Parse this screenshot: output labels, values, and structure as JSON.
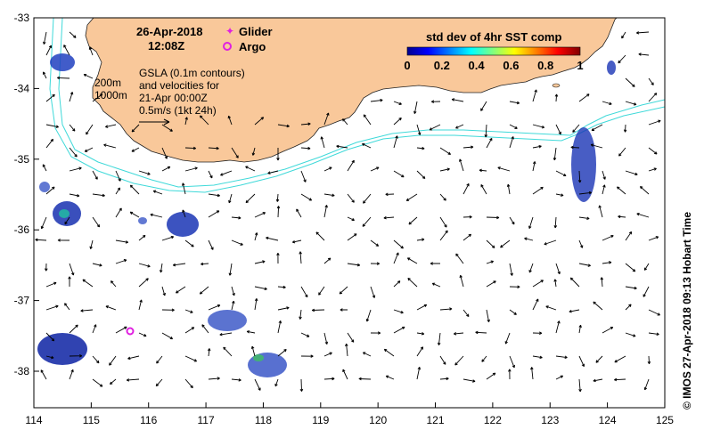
{
  "map": {
    "date": "26-Apr-2018",
    "time": "12:08Z",
    "legend": {
      "glider": "Glider",
      "argo": "Argo"
    },
    "gsla_text": [
      "GSLA (0.1m contours)",
      "and velocities for",
      "21-Apr 00:00Z",
      "0.5m/s (1kt 24h)"
    ],
    "depth_labels": [
      "200m",
      "1000m"
    ],
    "colorbar": {
      "title": "std dev of 4hr SST comp",
      "ticks": [
        "0",
        "0.2",
        "0.4",
        "0.6",
        "0.8",
        "1"
      ]
    },
    "x_ticks": [
      "114",
      "115",
      "116",
      "117",
      "118",
      "119",
      "120",
      "121",
      "122",
      "123",
      "124",
      "125"
    ],
    "y_ticks": [
      "-33",
      "-34",
      "-35",
      "-36",
      "-37",
      "-38"
    ],
    "credit": "© IMOS 27-Apr-2018 09:13 Hobart Time",
    "colors": {
      "land": "#f9c89a",
      "isobath": "#3fd9d9",
      "argo": "#e020e0",
      "glider": "#e020e0"
    }
  }
}
